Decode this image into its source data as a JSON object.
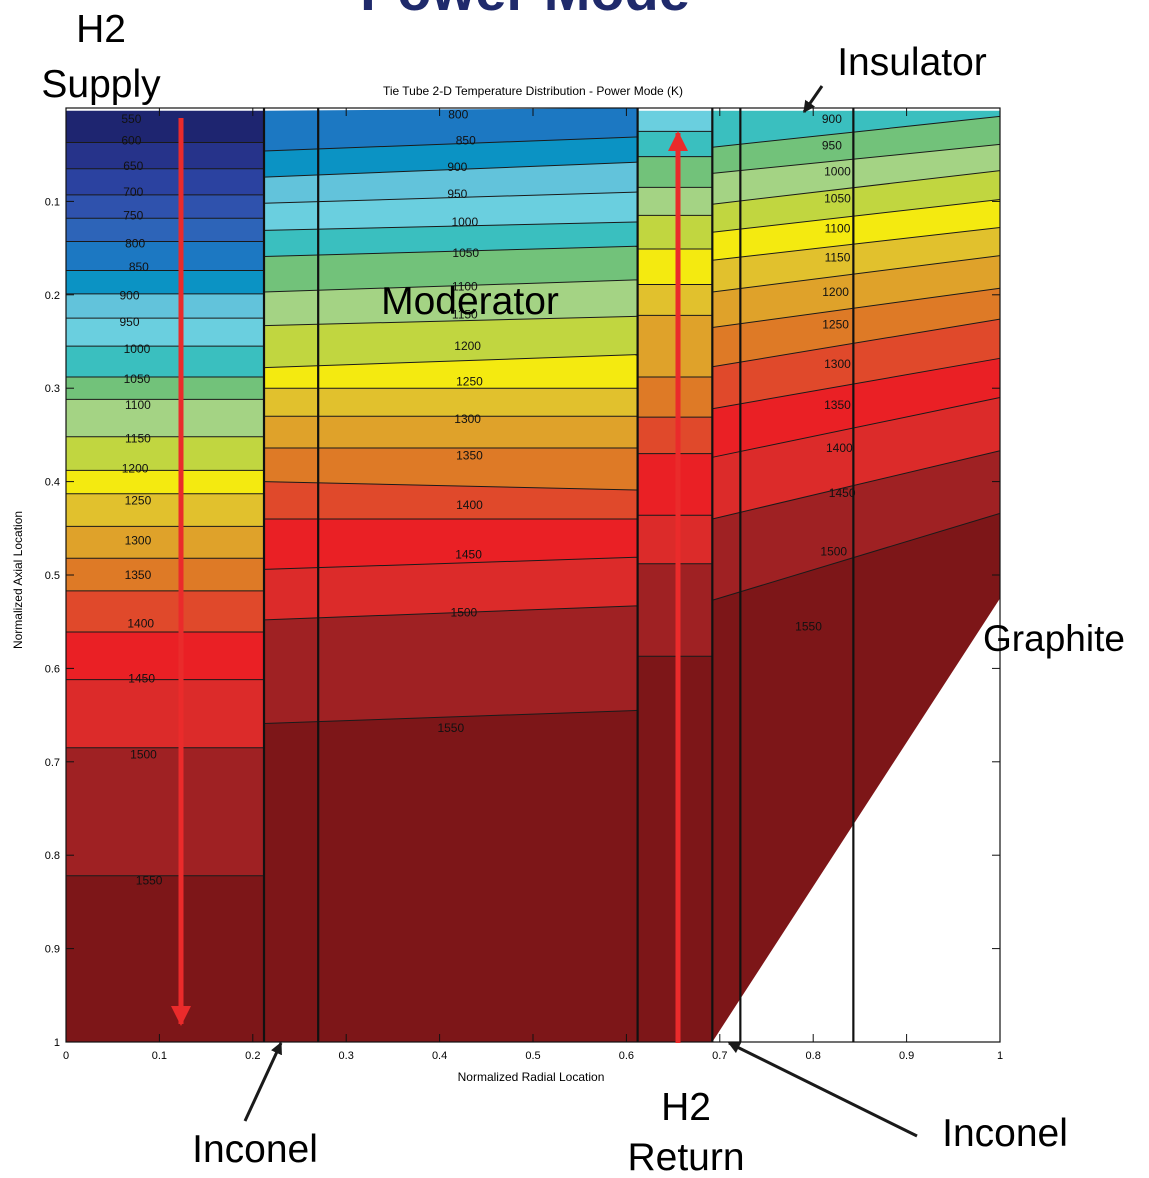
{
  "chart_data": {
    "type": "heatmap",
    "title": "Tie Tube 2-D Temperature Distribution - Power Mode (K)",
    "top_fragment": "Power Mode",
    "xlabel": "Normalized Radial Location",
    "ylabel": "Normalized Axial Location",
    "xlim": [
      0,
      1
    ],
    "ylim": [
      0,
      1
    ],
    "y_reversed": true,
    "x_ticks": [
      "0",
      "0.1",
      "0.2",
      "0.3",
      "0.4",
      "0.5",
      "0.6",
      "0.7",
      "0.8",
      "0.9",
      "1"
    ],
    "y_ticks": [
      "0.1",
      "0.2",
      "0.3",
      "0.4",
      "0.5",
      "0.6",
      "0.7",
      "0.8",
      "0.9",
      "1"
    ],
    "contour_levels": [
      550,
      600,
      650,
      700,
      750,
      800,
      850,
      900,
      950,
      1000,
      1050,
      1100,
      1150,
      1200,
      1250,
      1300,
      1350,
      1400,
      1450,
      1500,
      1550
    ],
    "colors": [
      "#1e2570",
      "#26338a",
      "#2b42a0",
      "#2f52ad",
      "#2d64b8",
      "#1c78c2",
      "#0b93c4",
      "#62c3db",
      "#6acfdf",
      "#3abfbf",
      "#72c27a",
      "#a4d384",
      "#c1d640",
      "#f4ea10",
      "#e1c12d",
      "#dfa22a",
      "#de7a26",
      "#e0492b",
      "#ea2025",
      "#dc2b2a",
      "#9f2123",
      "#7d1618"
    ],
    "regions": [
      {
        "name": "H2 Supply",
        "x_range": [
          0.0,
          0.212
        ],
        "boundaries": [
          0.003,
          0.037,
          0.065,
          0.093,
          0.118,
          0.143,
          0.174,
          0.199,
          0.225,
          0.255,
          0.288,
          0.312,
          0.352,
          0.388,
          0.413,
          0.448,
          0.482,
          0.517,
          0.561,
          0.612,
          0.685,
          0.822,
          1.0
        ],
        "labels": [
          {
            "v": "550",
            "x": 0.07,
            "y": 0.012
          },
          {
            "v": "600",
            "x": 0.07,
            "y": 0.035
          },
          {
            "v": "650",
            "x": 0.072,
            "y": 0.062
          },
          {
            "v": "700",
            "x": 0.072,
            "y": 0.09
          },
          {
            "v": "750",
            "x": 0.072,
            "y": 0.115
          },
          {
            "v": "800",
            "x": 0.074,
            "y": 0.145
          },
          {
            "v": "850",
            "x": 0.078,
            "y": 0.17
          },
          {
            "v": "900",
            "x": 0.068,
            "y": 0.201
          },
          {
            "v": "950",
            "x": 0.068,
            "y": 0.229
          },
          {
            "v": "1000",
            "x": 0.076,
            "y": 0.258
          },
          {
            "v": "1050",
            "x": 0.076,
            "y": 0.29
          },
          {
            "v": "1100",
            "x": 0.077,
            "y": 0.318
          },
          {
            "v": "1150",
            "x": 0.077,
            "y": 0.354
          },
          {
            "v": "1200",
            "x": 0.074,
            "y": 0.386
          },
          {
            "v": "1250",
            "x": 0.077,
            "y": 0.42
          },
          {
            "v": "1300",
            "x": 0.077,
            "y": 0.463
          },
          {
            "v": "1350",
            "x": 0.077,
            "y": 0.5
          },
          {
            "v": "1400",
            "x": 0.08,
            "y": 0.552
          },
          {
            "v": "1450",
            "x": 0.081,
            "y": 0.611
          },
          {
            "v": "1500",
            "x": 0.083,
            "y": 0.692
          },
          {
            "v": "1550",
            "x": 0.089,
            "y": 0.827
          }
        ]
      },
      {
        "name": "Moderator",
        "x_range": [
          0.212,
          0.612
        ],
        "boundaries_left": [
          0.003,
          0.046,
          0.074,
          0.102,
          0.131,
          0.159,
          0.197,
          0.233,
          0.278,
          0.3,
          0.33,
          0.364,
          0.4,
          0.44,
          0.494,
          0.548,
          0.659,
          1.0
        ],
        "boundaries_right": [
          0.0,
          0.031,
          0.058,
          0.09,
          0.122,
          0.148,
          0.184,
          0.223,
          0.264,
          0.3,
          0.33,
          0.364,
          0.409,
          0.44,
          0.481,
          0.533,
          0.645,
          1.0
        ],
        "labels": [
          {
            "v": "800",
            "x": 0.42,
            "y": 0.007
          },
          {
            "v": "850",
            "x": 0.428,
            "y": 0.035
          },
          {
            "v": "900",
            "x": 0.419,
            "y": 0.063
          },
          {
            "v": "950",
            "x": 0.419,
            "y": 0.092
          },
          {
            "v": "1000",
            "x": 0.427,
            "y": 0.122
          },
          {
            "v": "1050",
            "x": 0.428,
            "y": 0.155
          },
          {
            "v": "1100",
            "x": 0.427,
            "y": 0.191
          },
          {
            "v": "1150",
            "x": 0.427,
            "y": 0.221
          },
          {
            "v": "1200",
            "x": 0.43,
            "y": 0.255
          },
          {
            "v": "1250",
            "x": 0.432,
            "y": 0.293
          },
          {
            "v": "1300",
            "x": 0.43,
            "y": 0.333
          },
          {
            "v": "1350",
            "x": 0.432,
            "y": 0.372
          },
          {
            "v": "1400",
            "x": 0.432,
            "y": 0.425
          },
          {
            "v": "1450",
            "x": 0.431,
            "y": 0.478
          },
          {
            "v": "1500",
            "x": 0.426,
            "y": 0.54
          },
          {
            "v": "1550",
            "x": 0.412,
            "y": 0.664
          }
        ]
      },
      {
        "name": "H2 Return",
        "x_range": [
          0.612,
          0.692
        ],
        "boundaries": [
          0.003,
          0.025,
          0.052,
          0.085,
          0.115,
          0.151,
          0.189,
          0.222,
          0.288,
          0.331,
          0.37,
          0.436,
          0.488,
          0.587,
          1.0
        ],
        "labels": []
      },
      {
        "name": "Graphite",
        "x_range": [
          0.692,
          1.0
        ],
        "boundaries_left": [
          0.003,
          0.042,
          0.07,
          0.103,
          0.133,
          0.163,
          0.197,
          0.235,
          0.277,
          0.322,
          0.374,
          0.44,
          0.527,
          1.0
        ],
        "boundaries_right": [
          0.003,
          0.009,
          0.039,
          0.067,
          0.098,
          0.128,
          0.158,
          0.193,
          0.226,
          0.268,
          0.31,
          0.367,
          0.434,
          0.525,
          1.0
        ],
        "labels": [
          {
            "v": "900",
            "x": 0.82,
            "y": 0.012
          },
          {
            "v": "950",
            "x": 0.82,
            "y": 0.04
          },
          {
            "v": "1000",
            "x": 0.826,
            "y": 0.068
          },
          {
            "v": "1050",
            "x": 0.826,
            "y": 0.097
          },
          {
            "v": "1100",
            "x": 0.826,
            "y": 0.129
          },
          {
            "v": "1150",
            "x": 0.826,
            "y": 0.16
          },
          {
            "v": "1200",
            "x": 0.824,
            "y": 0.197
          },
          {
            "v": "1250",
            "x": 0.824,
            "y": 0.232
          },
          {
            "v": "1300",
            "x": 0.826,
            "y": 0.274
          },
          {
            "v": "1350",
            "x": 0.826,
            "y": 0.318
          },
          {
            "v": "1400",
            "x": 0.828,
            "y": 0.364
          },
          {
            "v": "1450",
            "x": 0.831,
            "y": 0.412
          },
          {
            "v": "1500",
            "x": 0.822,
            "y": 0.475
          },
          {
            "v": "1550",
            "x": 0.795,
            "y": 0.555
          }
        ]
      }
    ],
    "component_boundaries_x": [
      0.212,
      0.27,
      0.612,
      0.692,
      0.722,
      0.843
    ]
  },
  "annotations": {
    "h2_supply_line1": "H2",
    "h2_supply_line2": "Supply",
    "insulator": "Insulator",
    "moderator": "Moderator",
    "graphite": "Graphite",
    "inconel_left": "Inconel",
    "inconel_right": "Inconel",
    "h2_return_line1": "H2",
    "h2_return_line2": "Return"
  }
}
